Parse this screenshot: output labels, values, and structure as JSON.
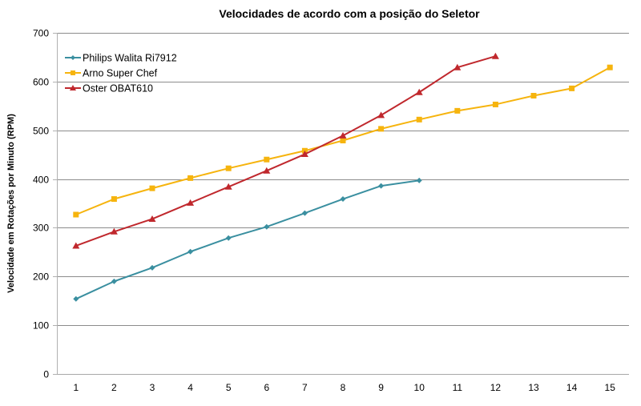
{
  "chart_data": {
    "type": "line",
    "title": "Velocidades de acordo com a posição do Seletor",
    "xlabel": "",
    "ylabel": "Velocidade em Rotações por Minuto (RPM)",
    "x": [
      1,
      2,
      3,
      4,
      5,
      6,
      7,
      8,
      9,
      10,
      11,
      12,
      13,
      14,
      15
    ],
    "categories": [
      "1",
      "2",
      "3",
      "4",
      "5",
      "6",
      "7",
      "8",
      "9",
      "10",
      "11",
      "12",
      "13",
      "14",
      "15"
    ],
    "ylim": [
      0,
      700
    ],
    "yticks": [
      0,
      100,
      200,
      300,
      400,
      500,
      600,
      700
    ],
    "grid": true,
    "legend_position": "upper-left-inside",
    "series": [
      {
        "name": "Philips Walita Ri7912",
        "color": "#3a8fa0",
        "marker": "diamond",
        "values": [
          154,
          190,
          218,
          251,
          279,
          302,
          330,
          359,
          386,
          397
        ]
      },
      {
        "name": "Arno Super Chef",
        "color": "#f6b40e",
        "marker": "square",
        "values": [
          327,
          359,
          381,
          402,
          422,
          440,
          458,
          479,
          503,
          522,
          540,
          553,
          571,
          586,
          629
        ]
      },
      {
        "name": "Oster OBAT610",
        "color": "#c0282d",
        "marker": "triangle",
        "values": [
          263,
          292,
          318,
          351,
          384,
          417,
          451,
          489,
          531,
          578,
          629,
          652
        ]
      }
    ]
  },
  "colors": {
    "gridline": "#8c8c8c",
    "axis": "#b0b0b0",
    "background": "#ffffff"
  }
}
